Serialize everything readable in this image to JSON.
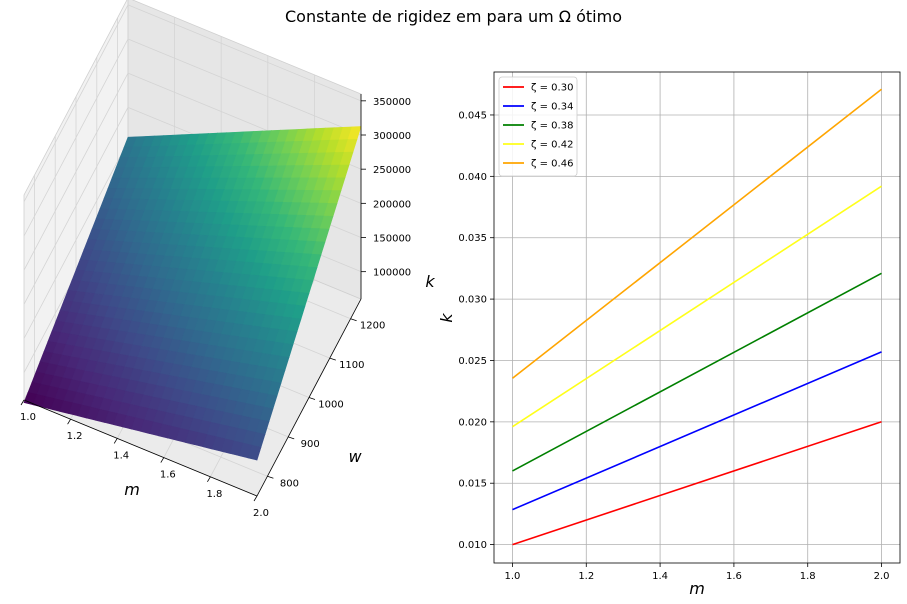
{
  "figure": {
    "suptitle": "Constante de rigidez em para um Ω ótimo"
  },
  "chart_data": [
    {
      "type": "surface3d",
      "title": "",
      "xlabel": "m",
      "ylabel": "w",
      "zlabel": "k",
      "x_ticks": [
        "1.0",
        "1.2",
        "1.4",
        "1.6",
        "1.8",
        "2.0"
      ],
      "y_ticks": [
        "800",
        "900",
        "1000",
        "1100",
        "1200"
      ],
      "z_ticks": [
        "100000",
        "150000",
        "200000",
        "250000",
        "300000",
        "350000"
      ],
      "xlim": [
        1.0,
        2.0
      ],
      "ylim": [
        750,
        1250
      ],
      "zlim": [
        60000,
        360000
      ],
      "colormap": "viridis",
      "corners": [
        {
          "m": 1.0,
          "w": 750,
          "k": 56250
        },
        {
          "m": 2.0,
          "w": 750,
          "k": 112500
        },
        {
          "m": 1.0,
          "w": 1250,
          "k": 156250
        },
        {
          "m": 2.0,
          "w": 1250,
          "k": 312500
        }
      ]
    },
    {
      "type": "line",
      "title": "",
      "xlabel": "m",
      "ylabel": "k",
      "x": [
        1.0,
        2.0
      ],
      "xlim": [
        0.95,
        2.05
      ],
      "ylim": [
        0.0085,
        0.0485
      ],
      "x_ticks": [
        "1.0",
        "1.2",
        "1.4",
        "1.6",
        "1.8",
        "2.0"
      ],
      "y_ticks": [
        "0.010",
        "0.015",
        "0.020",
        "0.025",
        "0.030",
        "0.035",
        "0.040",
        "0.045"
      ],
      "grid": true,
      "legend_position": "top-left",
      "series": [
        {
          "name": "ζ = 0.30",
          "color": "#ff0000",
          "values": [
            0.01,
            0.02
          ]
        },
        {
          "name": "ζ = 0.34",
          "color": "#0000ff",
          "values": [
            0.01285,
            0.0257
          ]
        },
        {
          "name": "ζ = 0.38",
          "color": "#008000",
          "values": [
            0.016,
            0.0321
          ]
        },
        {
          "name": "ζ = 0.42",
          "color": "#ffff1a",
          "values": [
            0.0196,
            0.0392
          ]
        },
        {
          "name": "ζ = 0.46",
          "color": "#ffa500",
          "values": [
            0.02355,
            0.0471
          ]
        }
      ]
    }
  ]
}
